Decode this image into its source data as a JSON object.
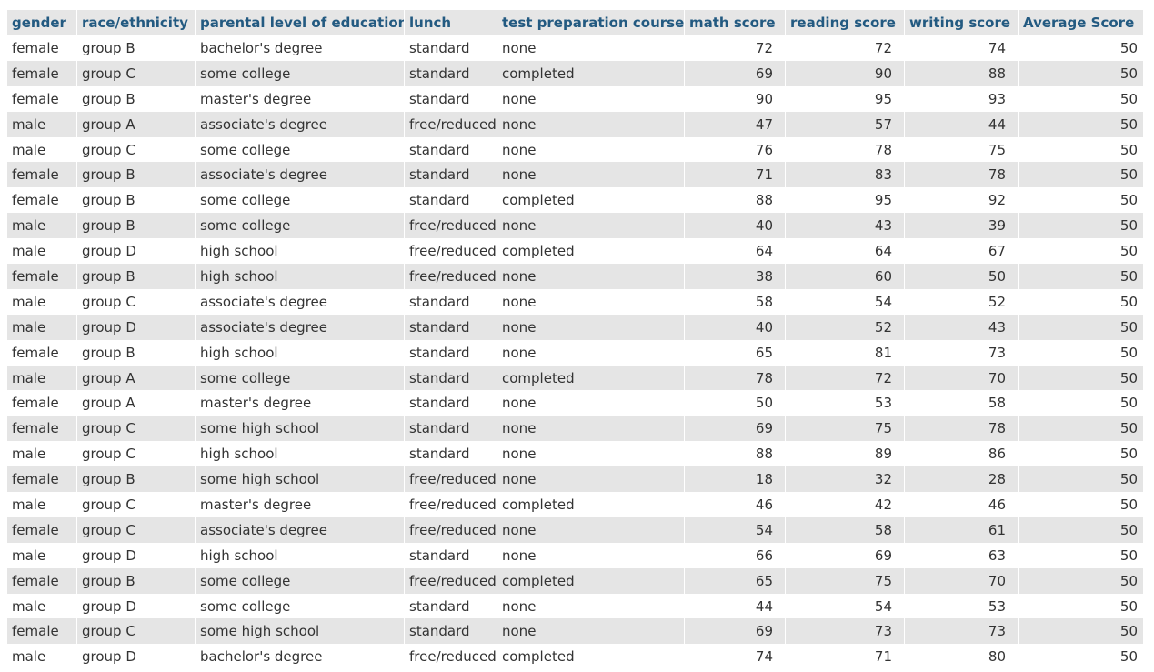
{
  "table": {
    "columns": [
      "gender",
      "race/ethnicity",
      "parental level of education",
      "lunch",
      "test preparation course",
      "math score",
      "reading score",
      "writing score",
      "Average Score"
    ],
    "rows": [
      [
        "female",
        "group B",
        "bachelor's degree",
        "standard",
        "none",
        "72",
        "72",
        "74",
        "50"
      ],
      [
        "female",
        "group C",
        "some college",
        "standard",
        "completed",
        "69",
        "90",
        "88",
        "50"
      ],
      [
        "female",
        "group B",
        "master's degree",
        "standard",
        "none",
        "90",
        "95",
        "93",
        "50"
      ],
      [
        "male",
        "group A",
        "associate's degree",
        "free/reduced",
        "none",
        "47",
        "57",
        "44",
        "50"
      ],
      [
        "male",
        "group C",
        "some college",
        "standard",
        "none",
        "76",
        "78",
        "75",
        "50"
      ],
      [
        "female",
        "group B",
        "associate's degree",
        "standard",
        "none",
        "71",
        "83",
        "78",
        "50"
      ],
      [
        "female",
        "group B",
        "some college",
        "standard",
        "completed",
        "88",
        "95",
        "92",
        "50"
      ],
      [
        "male",
        "group B",
        "some college",
        "free/reduced",
        "none",
        "40",
        "43",
        "39",
        "50"
      ],
      [
        "male",
        "group D",
        "high school",
        "free/reduced",
        "completed",
        "64",
        "64",
        "67",
        "50"
      ],
      [
        "female",
        "group B",
        "high school",
        "free/reduced",
        "none",
        "38",
        "60",
        "50",
        "50"
      ],
      [
        "male",
        "group C",
        "associate's degree",
        "standard",
        "none",
        "58",
        "54",
        "52",
        "50"
      ],
      [
        "male",
        "group D",
        "associate's degree",
        "standard",
        "none",
        "40",
        "52",
        "43",
        "50"
      ],
      [
        "female",
        "group B",
        "high school",
        "standard",
        "none",
        "65",
        "81",
        "73",
        "50"
      ],
      [
        "male",
        "group A",
        "some college",
        "standard",
        "completed",
        "78",
        "72",
        "70",
        "50"
      ],
      [
        "female",
        "group A",
        "master's degree",
        "standard",
        "none",
        "50",
        "53",
        "58",
        "50"
      ],
      [
        "female",
        "group C",
        "some high school",
        "standard",
        "none",
        "69",
        "75",
        "78",
        "50"
      ],
      [
        "male",
        "group C",
        "high school",
        "standard",
        "none",
        "88",
        "89",
        "86",
        "50"
      ],
      [
        "female",
        "group B",
        "some high school",
        "free/reduced",
        "none",
        "18",
        "32",
        "28",
        "50"
      ],
      [
        "male",
        "group C",
        "master's degree",
        "free/reduced",
        "completed",
        "46",
        "42",
        "46",
        "50"
      ],
      [
        "female",
        "group C",
        "associate's degree",
        "free/reduced",
        "none",
        "54",
        "58",
        "61",
        "50"
      ],
      [
        "male",
        "group D",
        "high school",
        "standard",
        "none",
        "66",
        "69",
        "63",
        "50"
      ],
      [
        "female",
        "group B",
        "some college",
        "free/reduced",
        "completed",
        "65",
        "75",
        "70",
        "50"
      ],
      [
        "male",
        "group D",
        "some college",
        "standard",
        "none",
        "44",
        "54",
        "53",
        "50"
      ],
      [
        "female",
        "group C",
        "some high school",
        "standard",
        "none",
        "69",
        "73",
        "73",
        "50"
      ],
      [
        "male",
        "group D",
        "bachelor's degree",
        "free/reduced",
        "completed",
        "74",
        "71",
        "80",
        "50"
      ]
    ]
  }
}
